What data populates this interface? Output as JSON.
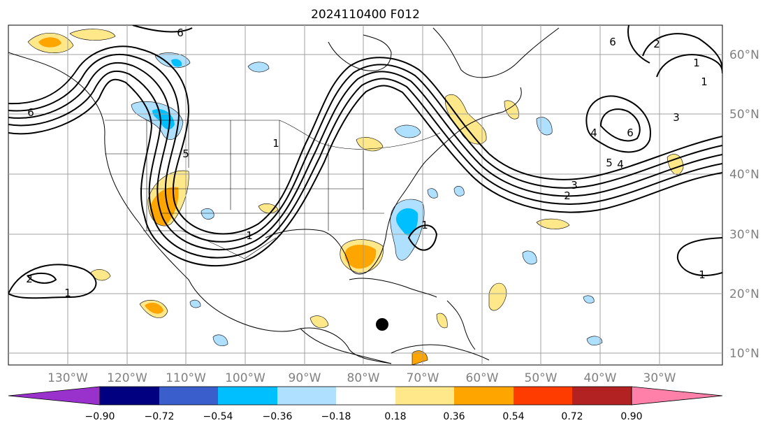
{
  "title": "2024110400 F012",
  "map": {
    "lon_ticks": [
      "130°W",
      "120°W",
      "110°W",
      "100°W",
      "90°W",
      "80°W",
      "70°W",
      "60°W",
      "50°W",
      "40°W",
      "30°W"
    ],
    "lat_ticks": [
      "60°N",
      "50°N",
      "40°N",
      "30°N",
      "20°N",
      "10°N"
    ],
    "contour_labels": [
      "6",
      "6",
      "5",
      "1",
      "6",
      "2",
      "1",
      "1",
      "4",
      "6",
      "3",
      "5",
      "4",
      "2",
      "3",
      "1",
      "1",
      "2",
      "1",
      "1"
    ],
    "marker": "storm-center-dot"
  },
  "colorbar": {
    "tick_labels": [
      "−0.90",
      "−0.72",
      "−0.54",
      "−0.36",
      "−0.18",
      "0.18",
      "0.36",
      "0.54",
      "0.72",
      "0.90"
    ],
    "colors": [
      "#9932cc",
      "#000080",
      "#3a5fcd",
      "#00bfff",
      "#b0e0ff",
      "#ffffff",
      "#ffe88a",
      "#ffa500",
      "#ff3c00",
      "#b22222",
      "#ff80a8"
    ]
  },
  "colors": {
    "positive_light": "#ffe88a",
    "positive_mid": "#ffa500",
    "negative_light": "#b0e0ff",
    "negative_mid": "#00bfff",
    "contour": "#000000",
    "grid": "#a0a0a0",
    "tick_text": "#808080"
  }
}
